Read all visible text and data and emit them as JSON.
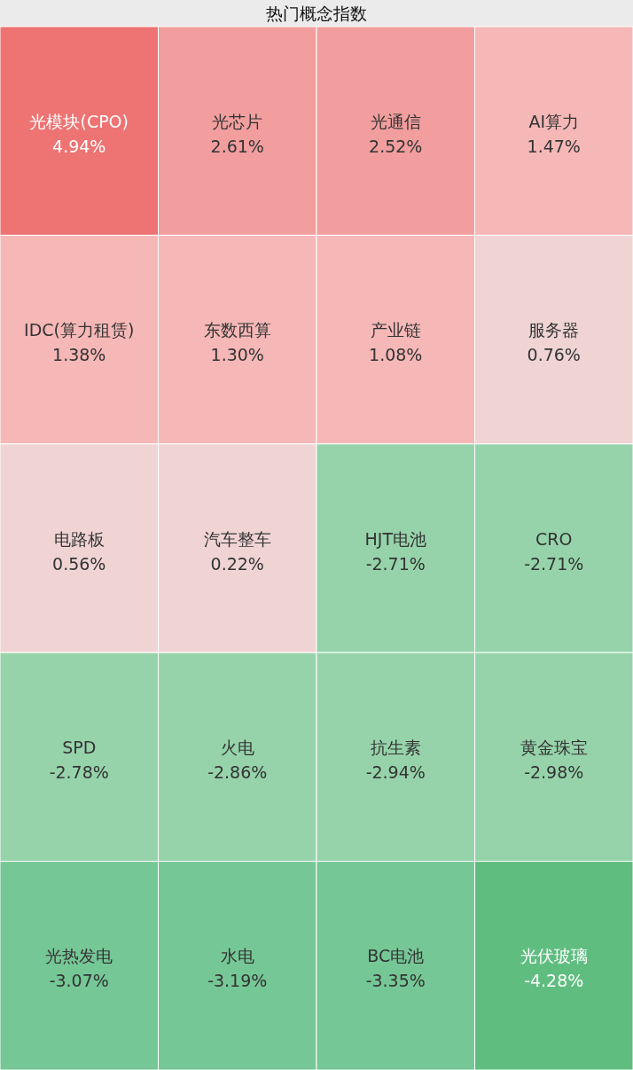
{
  "chart_data": {
    "type": "other",
    "title": "热门概念指数",
    "categories": [
      "光模块(CPO)",
      "光芯片",
      "光通信",
      "AI算力",
      "IDC(算力租赁)",
      "东数西算",
      "产业链",
      "服务器",
      "电路板",
      "汽车整车",
      "HJT电池",
      "CRO",
      "SPD",
      "火电",
      "抗生素",
      "黄金珠宝",
      "光热发电",
      "水电",
      "BC电池",
      "光伏玻璃"
    ],
    "values": [
      4.94,
      2.61,
      2.52,
      1.47,
      1.38,
      1.3,
      1.08,
      0.76,
      0.56,
      0.22,
      -2.71,
      -2.71,
      -2.78,
      -2.86,
      -2.94,
      -2.98,
      -3.07,
      -3.19,
      -3.35,
      -4.28
    ],
    "value_labels": [
      "4.94%",
      "2.61%",
      "2.52%",
      "1.47%",
      "1.38%",
      "1.30%",
      "1.08%",
      "0.76%",
      "0.56%",
      "0.22%",
      "-2.71%",
      "-2.71%",
      "-2.78%",
      "-2.86%",
      "-2.94%",
      "-2.98%",
      "-3.07%",
      "-3.19%",
      "-3.35%",
      "-4.28%"
    ],
    "colors": [
      "#ee7373",
      "#f29e9e",
      "#f29e9e",
      "#f5b8b7",
      "#f5b8b7",
      "#f5b8b7",
      "#f5b8b7",
      "#f0d4d4",
      "#f0d4d4",
      "#f0d4d4",
      "#96d3aa",
      "#96d3aa",
      "#96d3aa",
      "#96d3aa",
      "#96d3aa",
      "#96d3aa",
      "#76c796",
      "#76c796",
      "#76c796",
      "#5fbd80"
    ]
  }
}
